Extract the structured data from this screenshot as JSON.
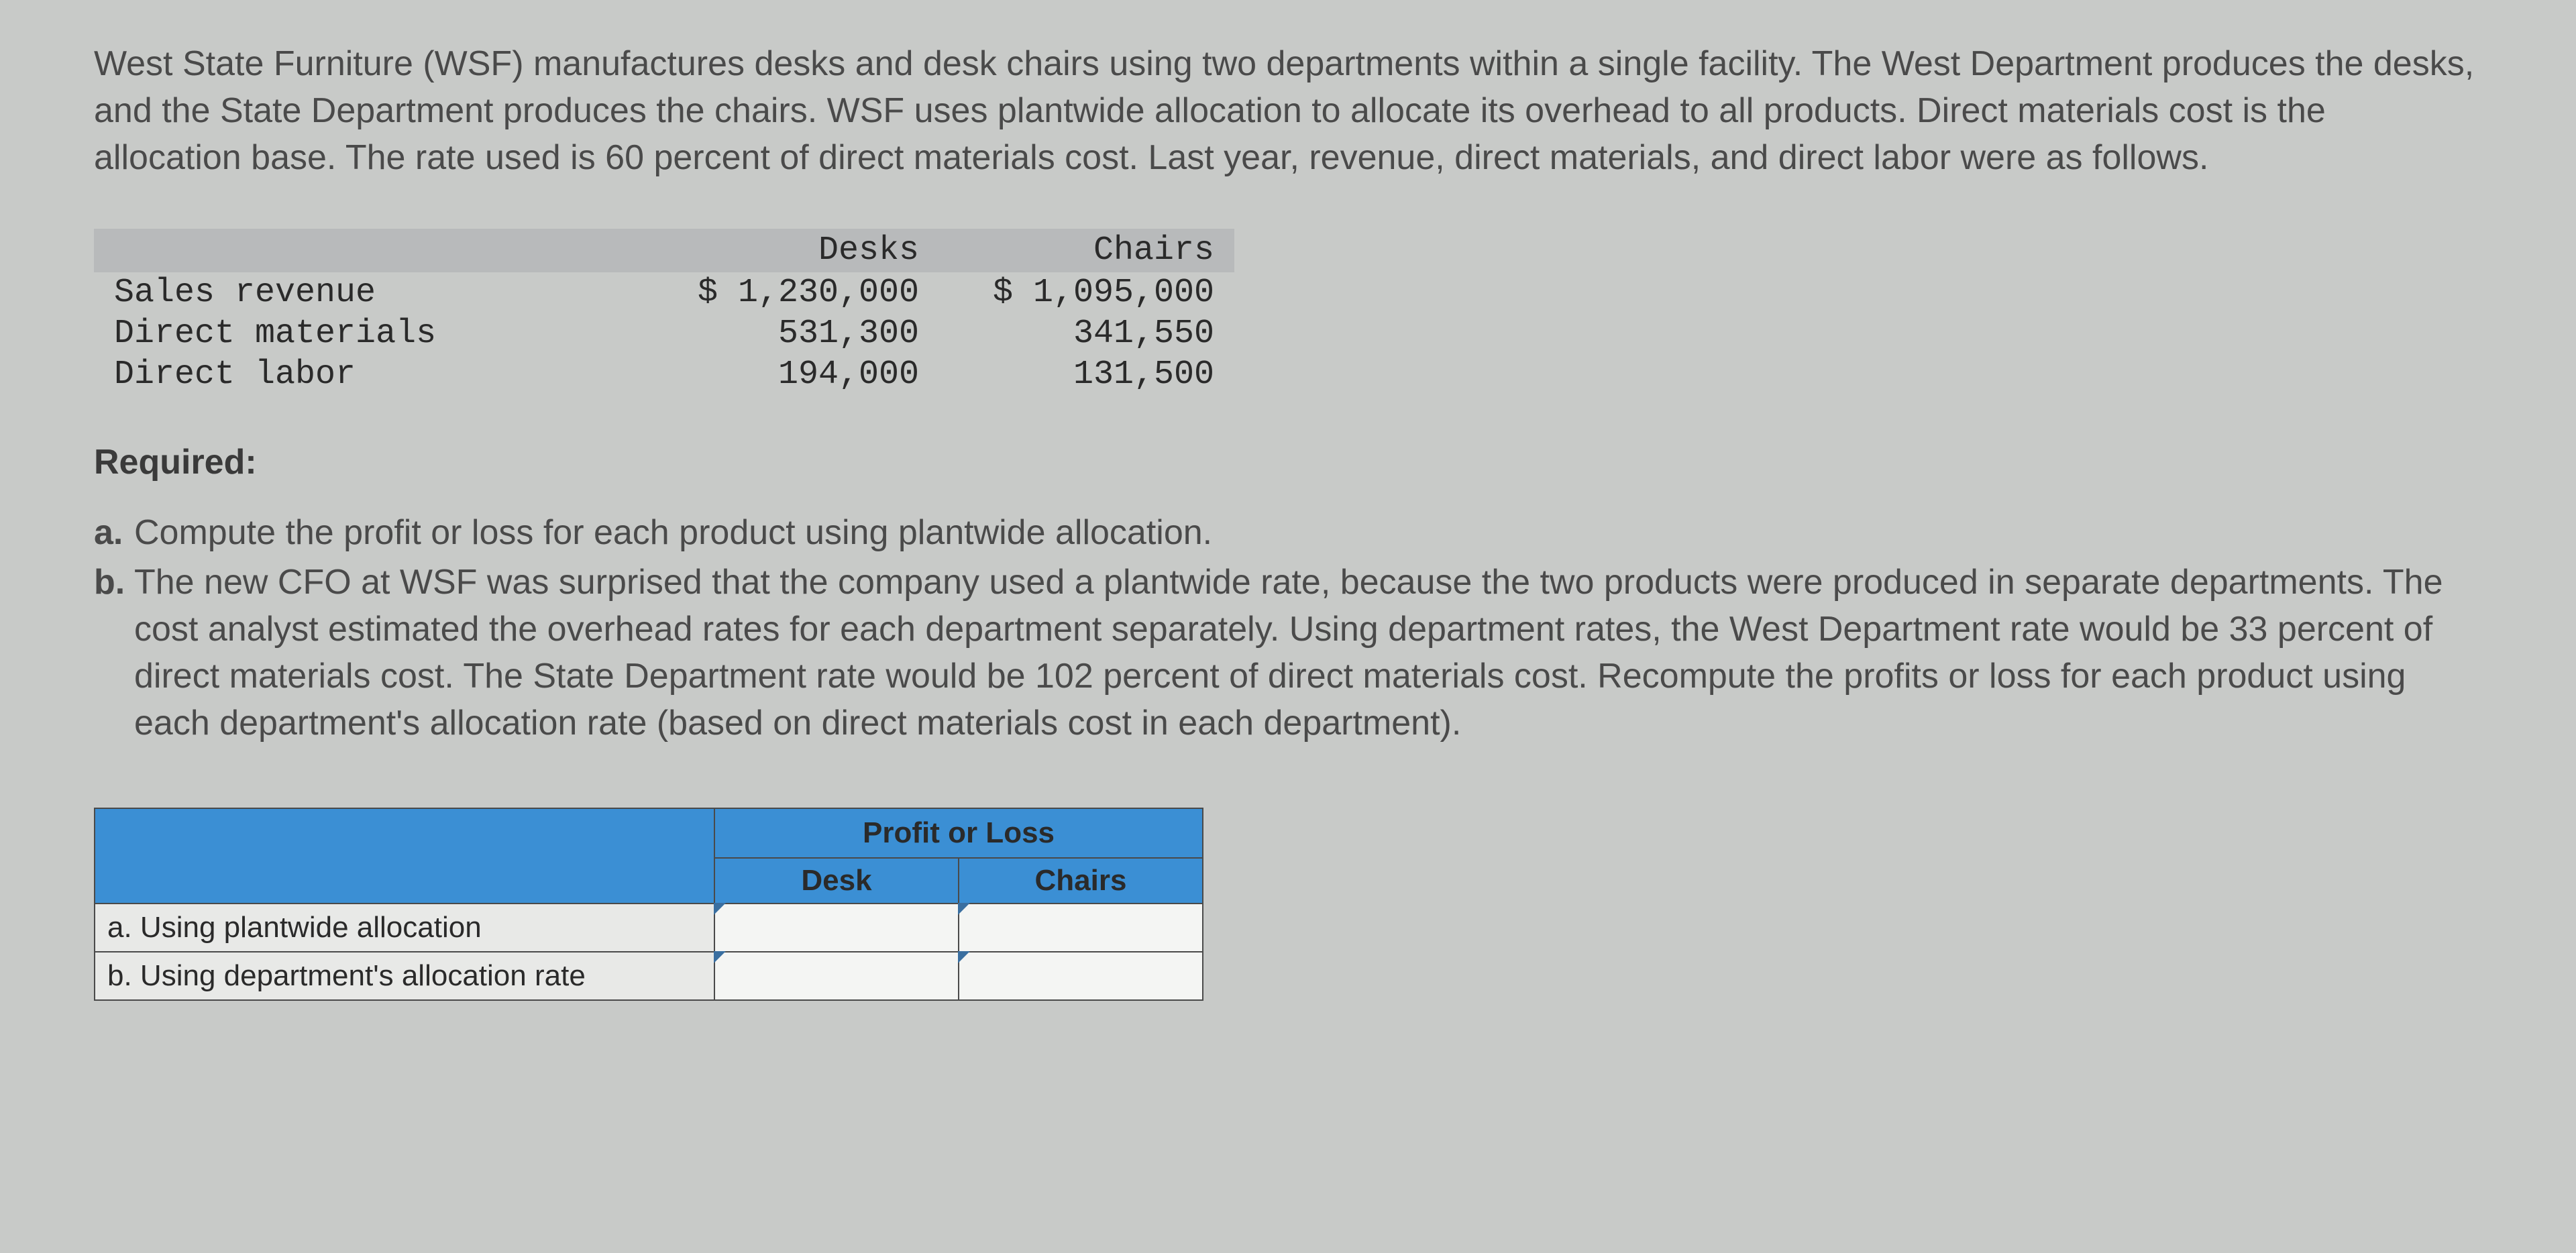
{
  "intro": "West State Furniture (WSF) manufactures desks and desk chairs using two departments within a single facility. The West Department produces the desks, and the State Department produces the chairs. WSF uses plantwide allocation to allocate its overhead to all products. Direct materials cost is the allocation base. The rate used is 60 percent of direct materials cost. Last year, revenue, direct materials, and direct labor were as follows.",
  "data_table": {
    "header_bg": "#b8babb",
    "font_family": "Courier New",
    "columns": [
      "",
      "Desks",
      "Chairs"
    ],
    "rows": [
      {
        "label": "Sales revenue",
        "desks": "$ 1,230,000",
        "chairs": "$ 1,095,000"
      },
      {
        "label": "Direct materials",
        "desks": "531,300",
        "chairs": "341,550"
      },
      {
        "label": "Direct labor",
        "desks": "194,000",
        "chairs": "131,500"
      }
    ]
  },
  "required_heading": "Required:",
  "requirements": {
    "a_marker": "a.",
    "a_text": "Compute the profit or loss for each product using plantwide allocation.",
    "b_marker": "b.",
    "b_text": "The new CFO at WSF was surprised that the company used a plantwide rate, because the two products were produced in separate departments. The cost analyst estimated the overhead rates for each department separately. Using department rates, the West Department rate would be 33 percent of direct materials cost. The State Department rate would be 102 percent of direct materials cost. Recompute the profits or loss for each product using each department's allocation rate (based on direct materials cost in each department)."
  },
  "answer_table": {
    "header_bg": "#3b8fd4",
    "cell_bg": "#f4f5f3",
    "rowlbl_bg": "#e8e9e7",
    "border_color": "#4a4a4a",
    "top_header": "Profit or Loss",
    "sub_headers": [
      "Desk",
      "Chairs"
    ],
    "rows": [
      {
        "label": "a. Using plantwide allocation",
        "desk": "",
        "chairs": ""
      },
      {
        "label": "b. Using department's allocation rate",
        "desk": "",
        "chairs": ""
      }
    ]
  }
}
